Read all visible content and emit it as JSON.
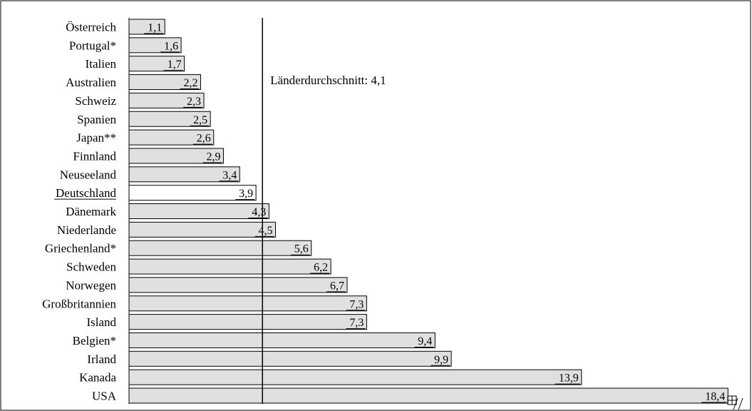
{
  "chart_data": {
    "type": "bar",
    "orientation": "horizontal",
    "categories": [
      "Österreich",
      "Portugal*",
      "Italien",
      "Australien",
      "Schweiz",
      "Spanien",
      "Japan**",
      "Finnland",
      "Neuseeland",
      "Deutschland",
      "Dänemark",
      "Niederlande",
      "Griechenland*",
      "Schweden",
      "Norwegen",
      "Großbritannien",
      "Island",
      "Belgien*",
      "Irland",
      "Kanada",
      "USA"
    ],
    "values": [
      1.1,
      1.6,
      1.7,
      2.2,
      2.3,
      2.5,
      2.6,
      2.9,
      3.4,
      3.9,
      4.3,
      4.5,
      5.6,
      6.2,
      6.7,
      7.3,
      7.3,
      9.4,
      9.9,
      13.9,
      18.4
    ],
    "value_labels": [
      "1,1",
      "1,6",
      "1,7",
      "2,2",
      "2,3",
      "2,5",
      "2,6",
      "2,9",
      "3,4",
      "3,9",
      "4,3",
      "4,5",
      "5,6",
      "6,2",
      "6,7",
      "7,3",
      "7,3",
      "9,4",
      "9,9",
      "13,9",
      "18,4"
    ],
    "highlight_category": "Deutschland",
    "reference_line": {
      "value": 4.1,
      "label": "Länderdurchschnitt: 4,1"
    },
    "title": "",
    "xlabel": "",
    "ylabel": "",
    "xlim": [
      0,
      18.7
    ],
    "grid": false,
    "colors": {
      "bar_fill": "#e0e0e0",
      "highlight_fill": "#ffffff",
      "bar_stroke": "#000000",
      "reference_line": "#000000"
    }
  }
}
